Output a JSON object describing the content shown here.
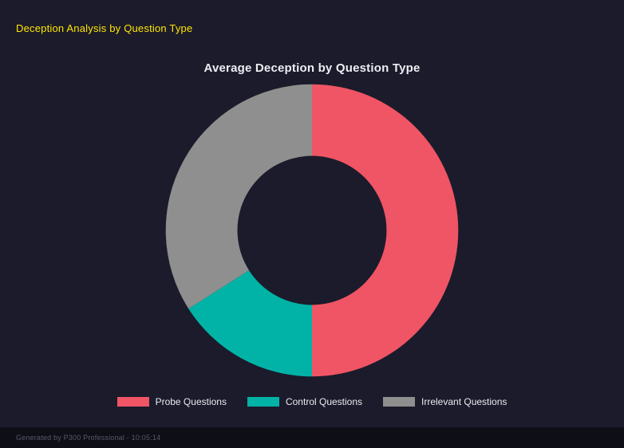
{
  "page": {
    "header_title": "Deception Analysis by Question Type",
    "footer_text": "Generated by P300 Professional - 10:05:14"
  },
  "colors": {
    "background": "#1b1b2b",
    "header_accent": "#ffe500",
    "title_text": "#eceef2",
    "footer_bar": "#0e0e17",
    "footer_text": "#595968"
  },
  "chart_data": {
    "type": "pie",
    "donut": true,
    "cutout_ratio": 0.51,
    "start_angle_deg": 0,
    "direction": "clockwise",
    "title": "Average Deception by Question Type",
    "categories": [
      "Probe Questions",
      "Control Questions",
      "Irrelevant Questions"
    ],
    "values": [
      50,
      16,
      34
    ],
    "colors": [
      "#ef5565",
      "#00b3a6",
      "#8f8f8f"
    ],
    "legend_position": "bottom",
    "grid": false
  }
}
